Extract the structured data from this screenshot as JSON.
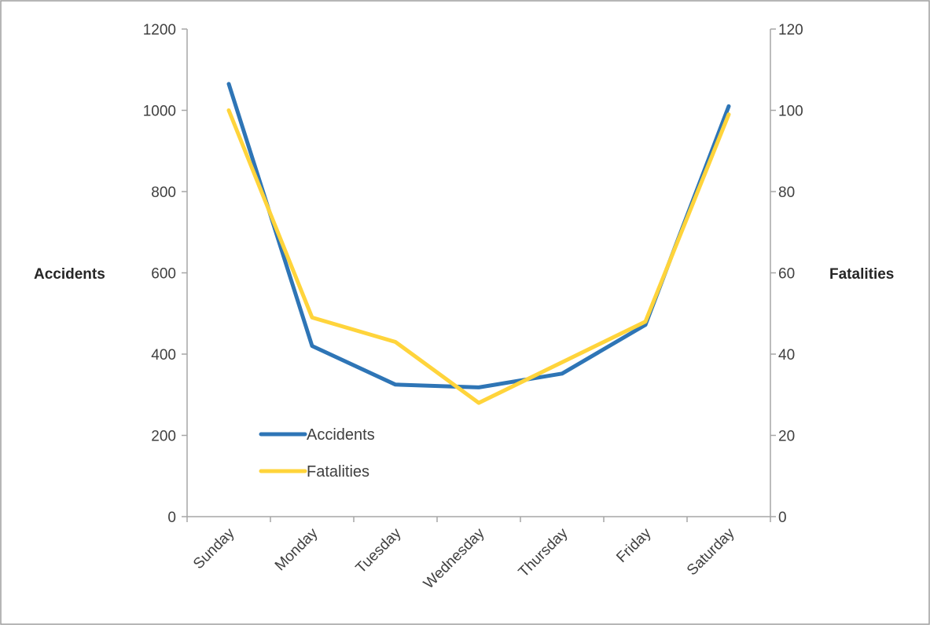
{
  "chart_data": {
    "type": "line",
    "categories": [
      "Sunday",
      "Monday",
      "Tuesday",
      "Wednesday",
      "Thursday",
      "Friday",
      "Saturday"
    ],
    "series": [
      {
        "name": "Accidents",
        "axis": "left",
        "color": "#2E75B6",
        "values": [
          1065,
          420,
          325,
          318,
          352,
          472,
          1010
        ]
      },
      {
        "name": "Fatalities",
        "axis": "right",
        "color": "#FFD43B",
        "values": [
          100,
          49,
          43,
          28,
          38,
          48,
          99
        ]
      }
    ],
    "ylabel_left": "Accidents",
    "ylabel_right": "Fatalities",
    "ylim_left": [
      0,
      1200
    ],
    "ylim_right": [
      0,
      120
    ],
    "yticks_left": [
      0,
      200,
      400,
      600,
      800,
      1000,
      1200
    ],
    "yticks_right": [
      0,
      20,
      40,
      60,
      80,
      100,
      120
    ],
    "grid": false,
    "legend": {
      "placement": "lower-left-inside",
      "entries": [
        "Accidents",
        "Fatalities"
      ]
    },
    "colors": {
      "axis": "#A6A6A6",
      "border": "#9E9E9E",
      "text": "#404040"
    }
  }
}
